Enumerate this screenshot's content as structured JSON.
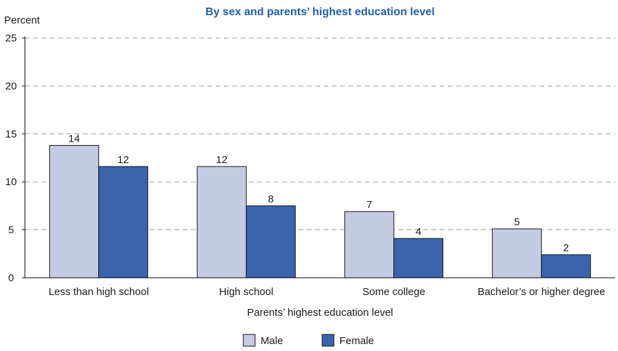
{
  "chart_data": {
    "type": "bar",
    "title": "By sex and parents’ highest education level",
    "ylabel": "Percent",
    "xlabel": "Parents’ highest education level",
    "ylim": [
      0,
      25
    ],
    "yticks": [
      0,
      5,
      10,
      15,
      20,
      25
    ],
    "grid": true,
    "legend_position": "bottom-center",
    "categories": [
      "Less than high school",
      "High school",
      "Some college",
      "Bachelor’s or higher degree"
    ],
    "series": [
      {
        "name": "Male",
        "color": "#c5cbe3",
        "values": [
          13.8,
          11.6,
          6.9,
          5.1
        ],
        "labels": [
          "14",
          "12",
          "7",
          "5"
        ]
      },
      {
        "name": "Female",
        "color": "#3a64ad",
        "values": [
          11.6,
          7.5,
          4.1,
          2.4
        ],
        "labels": [
          "12",
          "8",
          "4",
          "2"
        ]
      }
    ],
    "title_color": "#1f5fa8"
  }
}
